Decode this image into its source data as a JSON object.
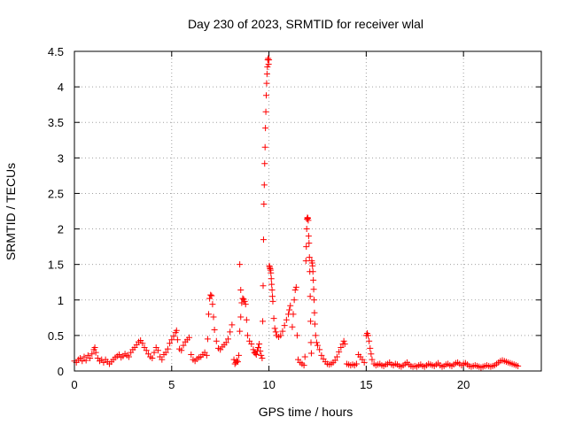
{
  "chart_data": {
    "type": "scatter",
    "title": "Day 230 of 2023, SRMTID for receiver wlal",
    "xlabel": "GPS time / hours",
    "ylabel": "SRMTID / TECUs",
    "xlim": [
      0,
      24
    ],
    "ylim": [
      0,
      4.5
    ],
    "xticks": [
      0,
      5,
      10,
      15,
      20
    ],
    "xtick_labels": [
      "0",
      "5",
      "10",
      "15",
      "20"
    ],
    "yticks": [
      0,
      0.5,
      1,
      1.5,
      2,
      2.5,
      3,
      3.5,
      4,
      4.5
    ],
    "ytick_labels": [
      "0",
      "0.5",
      "1",
      "1.5",
      "2",
      "2.5",
      "3",
      "3.5",
      "4",
      "4.5"
    ],
    "grid": true,
    "marker": "plus",
    "series": [
      {
        "color": "#ff0000",
        "points": [
          [
            0.0,
            0.14
          ],
          [
            0.1,
            0.12
          ],
          [
            0.2,
            0.16
          ],
          [
            0.3,
            0.18
          ],
          [
            0.4,
            0.14
          ],
          [
            0.5,
            0.2
          ],
          [
            0.6,
            0.15
          ],
          [
            0.7,
            0.22
          ],
          [
            0.8,
            0.18
          ],
          [
            0.9,
            0.24
          ],
          [
            1.0,
            0.3
          ],
          [
            1.05,
            0.33
          ],
          [
            1.1,
            0.26
          ],
          [
            1.2,
            0.18
          ],
          [
            1.3,
            0.14
          ],
          [
            1.4,
            0.16
          ],
          [
            1.5,
            0.12
          ],
          [
            1.6,
            0.16
          ],
          [
            1.7,
            0.13
          ],
          [
            1.8,
            0.1
          ],
          [
            1.9,
            0.13
          ],
          [
            2.0,
            0.16
          ],
          [
            2.1,
            0.19
          ],
          [
            2.2,
            0.21
          ],
          [
            2.3,
            0.23
          ],
          [
            2.4,
            0.19
          ],
          [
            2.5,
            0.21
          ],
          [
            2.6,
            0.24
          ],
          [
            2.7,
            0.22
          ],
          [
            2.8,
            0.2
          ],
          [
            2.9,
            0.26
          ],
          [
            3.0,
            0.3
          ],
          [
            3.1,
            0.33
          ],
          [
            3.2,
            0.37
          ],
          [
            3.3,
            0.41
          ],
          [
            3.4,
            0.43
          ],
          [
            3.5,
            0.39
          ],
          [
            3.6,
            0.33
          ],
          [
            3.7,
            0.29
          ],
          [
            3.8,
            0.24
          ],
          [
            3.9,
            0.2
          ],
          [
            4.0,
            0.18
          ],
          [
            4.1,
            0.26
          ],
          [
            4.2,
            0.33
          ],
          [
            4.3,
            0.29
          ],
          [
            4.4,
            0.2
          ],
          [
            4.5,
            0.16
          ],
          [
            4.6,
            0.23
          ],
          [
            4.7,
            0.26
          ],
          [
            4.8,
            0.31
          ],
          [
            4.9,
            0.39
          ],
          [
            5.0,
            0.44
          ],
          [
            5.1,
            0.49
          ],
          [
            5.2,
            0.54
          ],
          [
            5.25,
            0.57
          ],
          [
            5.3,
            0.44
          ],
          [
            5.4,
            0.31
          ],
          [
            5.5,
            0.29
          ],
          [
            5.6,
            0.36
          ],
          [
            5.7,
            0.41
          ],
          [
            5.8,
            0.44
          ],
          [
            5.9,
            0.47
          ],
          [
            6.0,
            0.23
          ],
          [
            6.1,
            0.16
          ],
          [
            6.2,
            0.14
          ],
          [
            6.3,
            0.17
          ],
          [
            6.4,
            0.19
          ],
          [
            6.5,
            0.2
          ],
          [
            6.6,
            0.23
          ],
          [
            6.7,
            0.26
          ],
          [
            6.8,
            0.22
          ],
          [
            6.85,
            0.45
          ],
          [
            6.9,
            0.8
          ],
          [
            6.95,
            1.02
          ],
          [
            7.0,
            1.07
          ],
          [
            7.05,
            1.06
          ],
          [
            7.1,
            0.94
          ],
          [
            7.15,
            0.76
          ],
          [
            7.2,
            0.58
          ],
          [
            7.3,
            0.42
          ],
          [
            7.4,
            0.32
          ],
          [
            7.5,
            0.3
          ],
          [
            7.6,
            0.34
          ],
          [
            7.7,
            0.37
          ],
          [
            7.8,
            0.4
          ],
          [
            7.9,
            0.45
          ],
          [
            8.0,
            0.55
          ],
          [
            8.1,
            0.65
          ],
          [
            8.2,
            0.16
          ],
          [
            8.25,
            0.1
          ],
          [
            8.3,
            0.12
          ],
          [
            8.35,
            0.15
          ],
          [
            8.4,
            0.13
          ],
          [
            8.45,
            0.22
          ],
          [
            8.5,
            0.56
          ],
          [
            8.55,
            0.76
          ],
          [
            8.6,
            0.96
          ],
          [
            8.65,
            1.02
          ],
          [
            8.7,
            1.01
          ],
          [
            8.75,
            0.98
          ],
          [
            8.8,
            0.94
          ],
          [
            8.85,
            0.72
          ],
          [
            8.9,
            0.5
          ],
          [
            9.0,
            0.42
          ],
          [
            9.1,
            0.38
          ],
          [
            9.2,
            0.3
          ],
          [
            9.25,
            0.26
          ],
          [
            9.3,
            0.25
          ],
          [
            9.35,
            0.23
          ],
          [
            9.4,
            0.28
          ],
          [
            9.45,
            0.33
          ],
          [
            9.5,
            0.38
          ],
          [
            9.55,
            0.28
          ],
          [
            9.6,
            0.22
          ],
          [
            9.65,
            0.18
          ],
          [
            8.5,
            1.5
          ],
          [
            8.55,
            1.14
          ],
          [
            9.68,
            0.7
          ],
          [
            9.7,
            1.2
          ],
          [
            9.72,
            1.85
          ],
          [
            9.74,
            2.35
          ],
          [
            9.76,
            2.62
          ],
          [
            9.78,
            2.92
          ],
          [
            9.8,
            3.15
          ],
          [
            9.82,
            3.42
          ],
          [
            9.84,
            3.65
          ],
          [
            9.86,
            3.88
          ],
          [
            9.88,
            4.05
          ],
          [
            9.9,
            4.18
          ],
          [
            9.92,
            4.28
          ],
          [
            9.94,
            4.38
          ],
          [
            9.96,
            4.4
          ],
          [
            9.98,
            4.32
          ],
          [
            10.0,
            4.38
          ],
          [
            10.02,
            1.48
          ],
          [
            10.04,
            1.46
          ],
          [
            10.06,
            1.44
          ],
          [
            10.08,
            1.42
          ],
          [
            10.1,
            1.38
          ],
          [
            10.12,
            1.3
          ],
          [
            10.14,
            1.22
          ],
          [
            10.16,
            1.14
          ],
          [
            10.18,
            1.05
          ],
          [
            10.2,
            0.98
          ],
          [
            10.25,
            0.74
          ],
          [
            10.3,
            0.6
          ],
          [
            10.35,
            0.55
          ],
          [
            10.4,
            0.5
          ],
          [
            10.5,
            0.48
          ],
          [
            10.6,
            0.5
          ],
          [
            10.7,
            0.56
          ],
          [
            10.8,
            0.64
          ],
          [
            10.9,
            0.72
          ],
          [
            11.0,
            0.8
          ],
          [
            11.05,
            0.86
          ],
          [
            11.1,
            0.92
          ],
          [
            11.2,
            0.62
          ],
          [
            11.25,
            0.8
          ],
          [
            11.3,
            1.0
          ],
          [
            11.35,
            1.14
          ],
          [
            11.4,
            1.18
          ],
          [
            11.45,
            0.5
          ],
          [
            11.5,
            0.16
          ],
          [
            11.6,
            0.12
          ],
          [
            11.7,
            0.1
          ],
          [
            11.8,
            0.08
          ],
          [
            11.85,
            0.2
          ],
          [
            11.9,
            1.55
          ],
          [
            11.92,
            1.75
          ],
          [
            11.94,
            2.0
          ],
          [
            11.96,
            2.14
          ],
          [
            11.98,
            2.16
          ],
          [
            12.0,
            2.15
          ],
          [
            12.02,
            2.12
          ],
          [
            12.04,
            1.9
          ],
          [
            12.06,
            1.8
          ],
          [
            12.08,
            1.6
          ],
          [
            12.1,
            1.4
          ],
          [
            12.12,
            1.05
          ],
          [
            12.14,
            0.7
          ],
          [
            12.16,
            0.4
          ],
          [
            12.18,
            0.25
          ],
          [
            12.2,
            1.55
          ],
          [
            12.22,
            1.52
          ],
          [
            12.24,
            1.48
          ],
          [
            12.26,
            1.4
          ],
          [
            12.28,
            1.28
          ],
          [
            12.3,
            1.15
          ],
          [
            12.32,
            1.0
          ],
          [
            12.34,
            0.82
          ],
          [
            12.36,
            0.66
          ],
          [
            12.4,
            0.5
          ],
          [
            12.45,
            0.4
          ],
          [
            12.5,
            0.36
          ],
          [
            12.6,
            0.3
          ],
          [
            12.7,
            0.22
          ],
          [
            12.8,
            0.17
          ],
          [
            12.9,
            0.13
          ],
          [
            13.0,
            0.1
          ],
          [
            13.1,
            0.09
          ],
          [
            13.2,
            0.1
          ],
          [
            13.3,
            0.12
          ],
          [
            13.4,
            0.15
          ],
          [
            13.5,
            0.2
          ],
          [
            13.6,
            0.27
          ],
          [
            13.7,
            0.33
          ],
          [
            13.8,
            0.38
          ],
          [
            13.85,
            0.42
          ],
          [
            13.9,
            0.38
          ],
          [
            14.0,
            0.1
          ],
          [
            14.1,
            0.09
          ],
          [
            14.2,
            0.08
          ],
          [
            14.3,
            0.09
          ],
          [
            14.4,
            0.08
          ],
          [
            14.5,
            0.1
          ],
          [
            14.6,
            0.23
          ],
          [
            14.7,
            0.2
          ],
          [
            14.8,
            0.16
          ],
          [
            14.9,
            0.12
          ],
          [
            15.0,
            0.5
          ],
          [
            15.05,
            0.53
          ],
          [
            15.1,
            0.5
          ],
          [
            15.15,
            0.42
          ],
          [
            15.2,
            0.32
          ],
          [
            15.25,
            0.24
          ],
          [
            15.3,
            0.16
          ],
          [
            15.4,
            0.1
          ],
          [
            15.5,
            0.08
          ],
          [
            15.6,
            0.09
          ],
          [
            15.7,
            0.1
          ],
          [
            15.8,
            0.08
          ],
          [
            15.9,
            0.07
          ],
          [
            16.0,
            0.09
          ],
          [
            16.1,
            0.1
          ],
          [
            16.2,
            0.12
          ],
          [
            16.3,
            0.09
          ],
          [
            16.4,
            0.08
          ],
          [
            16.5,
            0.1
          ],
          [
            16.6,
            0.09
          ],
          [
            16.7,
            0.07
          ],
          [
            16.8,
            0.06
          ],
          [
            16.9,
            0.08
          ],
          [
            17.0,
            0.1
          ],
          [
            17.1,
            0.12
          ],
          [
            17.2,
            0.09
          ],
          [
            17.3,
            0.07
          ],
          [
            17.4,
            0.06
          ],
          [
            17.5,
            0.07
          ],
          [
            17.6,
            0.06
          ],
          [
            17.7,
            0.08
          ],
          [
            17.8,
            0.09
          ],
          [
            17.9,
            0.07
          ],
          [
            18.0,
            0.06
          ],
          [
            18.1,
            0.08
          ],
          [
            18.2,
            0.1
          ],
          [
            18.3,
            0.09
          ],
          [
            18.4,
            0.08
          ],
          [
            18.5,
            0.07
          ],
          [
            18.6,
            0.09
          ],
          [
            18.7,
            0.11
          ],
          [
            18.8,
            0.08
          ],
          [
            18.9,
            0.06
          ],
          [
            19.0,
            0.07
          ],
          [
            19.1,
            0.09
          ],
          [
            19.2,
            0.1
          ],
          [
            19.3,
            0.08
          ],
          [
            19.4,
            0.07
          ],
          [
            19.5,
            0.09
          ],
          [
            19.6,
            0.11
          ],
          [
            19.7,
            0.12
          ],
          [
            19.8,
            0.1
          ],
          [
            19.9,
            0.08
          ],
          [
            20.0,
            0.1
          ],
          [
            20.1,
            0.11
          ],
          [
            20.2,
            0.09
          ],
          [
            20.3,
            0.07
          ],
          [
            20.4,
            0.06
          ],
          [
            20.5,
            0.07
          ],
          [
            20.6,
            0.08
          ],
          [
            20.7,
            0.07
          ],
          [
            20.8,
            0.06
          ],
          [
            20.9,
            0.05
          ],
          [
            21.0,
            0.06
          ],
          [
            21.1,
            0.07
          ],
          [
            21.2,
            0.08
          ],
          [
            21.3,
            0.07
          ],
          [
            21.4,
            0.06
          ],
          [
            21.5,
            0.07
          ],
          [
            21.6,
            0.08
          ],
          [
            21.7,
            0.1
          ],
          [
            21.8,
            0.12
          ],
          [
            21.9,
            0.14
          ],
          [
            22.0,
            0.15
          ],
          [
            22.1,
            0.14
          ],
          [
            22.2,
            0.13
          ],
          [
            22.3,
            0.12
          ],
          [
            22.4,
            0.11
          ],
          [
            22.5,
            0.1
          ],
          [
            22.6,
            0.09
          ],
          [
            22.7,
            0.08
          ],
          [
            22.8,
            0.07
          ]
        ]
      }
    ]
  }
}
